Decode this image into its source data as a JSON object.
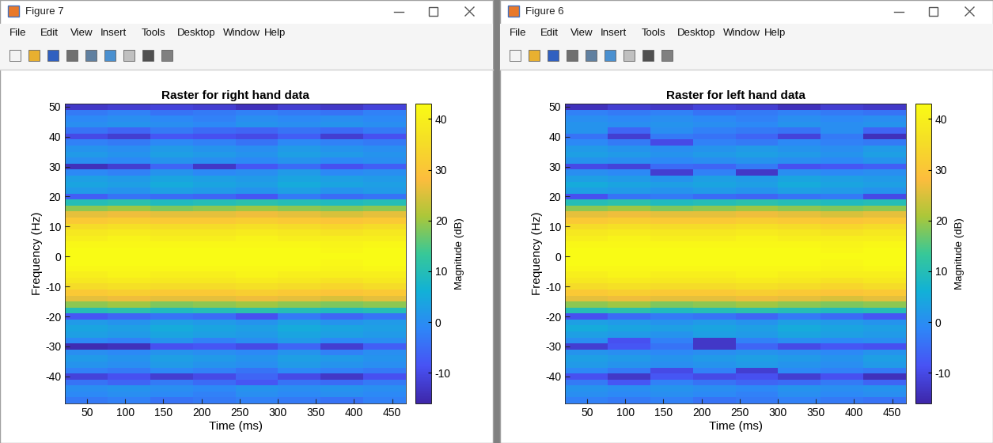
{
  "windows": [
    {
      "title": "Figure 7",
      "menu": [
        "File",
        "Edit",
        "View",
        "Insert",
        "Tools",
        "Desktop",
        "Window",
        "Help"
      ]
    },
    {
      "title": "Figure 6",
      "menu": [
        "File",
        "Edit",
        "View",
        "Insert",
        "Tools",
        "Desktop",
        "Window",
        "Help"
      ]
    }
  ],
  "chart_data": [
    {
      "type": "heatmap",
      "title": "Raster for right hand data",
      "x_label": "Time (ms)",
      "y_label": "Frequency (Hz)",
      "xlim": [
        21,
        468
      ],
      "ylim": [
        -49,
        51
      ],
      "xticks": [
        50,
        100,
        150,
        200,
        250,
        300,
        350,
        400,
        450
      ],
      "yticks": [
        -40,
        -30,
        -20,
        -10,
        0,
        10,
        20,
        30,
        40,
        50
      ],
      "x_edges": [
        21,
        77,
        133,
        189,
        245,
        300,
        356,
        412,
        468
      ],
      "y_edges": [
        -49,
        -47,
        -45,
        -43,
        -41,
        -39,
        -37,
        -35,
        -33,
        -31,
        -29,
        -27,
        -25,
        -23,
        -21,
        -19,
        -17,
        -15,
        -13,
        -11,
        -9,
        -7,
        -5,
        -3,
        -1,
        1,
        3,
        5,
        7,
        9,
        11,
        13,
        15,
        17,
        19,
        21,
        23,
        25,
        27,
        29,
        31,
        33,
        35,
        37,
        39,
        41,
        43,
        45,
        47,
        49,
        51
      ],
      "cells": [
        [
          -3,
          -2,
          -4,
          -3,
          -2,
          -3,
          -4,
          -2
        ],
        [
          -1,
          0,
          -1,
          -2,
          0,
          -1,
          0,
          -1
        ],
        [
          0,
          1,
          0,
          -1,
          1,
          0,
          1,
          0
        ],
        [
          -4,
          -6,
          -3,
          -5,
          -8,
          -4,
          -5,
          -3
        ],
        [
          -11,
          -9,
          -12,
          -10,
          -6,
          -10,
          -13,
          -9
        ],
        [
          -2,
          -3,
          -1,
          -2,
          -4,
          -1,
          -2,
          -3
        ],
        [
          1,
          0,
          2,
          1,
          0,
          2,
          1,
          0
        ],
        [
          2,
          1,
          3,
          2,
          1,
          3,
          2,
          1
        ],
        [
          0,
          -1,
          1,
          0,
          -1,
          1,
          -2,
          0
        ],
        [
          -15,
          -14,
          -9,
          -8,
          -10,
          -6,
          -12,
          -7
        ],
        [
          -1,
          -2,
          1,
          -2,
          0,
          2,
          -1,
          0
        ],
        [
          3,
          2,
          4,
          3,
          2,
          4,
          3,
          2
        ],
        [
          4,
          3,
          5,
          4,
          3,
          5,
          4,
          3
        ],
        [
          2,
          1,
          3,
          2,
          1,
          3,
          1,
          2
        ],
        [
          -8,
          -6,
          -4,
          -5,
          -9,
          -3,
          -6,
          -4
        ],
        [
          10,
          11,
          9,
          10,
          11,
          10,
          9,
          10
        ],
        [
          19,
          20,
          18,
          19,
          20,
          19,
          18,
          19
        ],
        [
          26,
          27,
          26,
          26,
          27,
          26,
          25,
          26
        ],
        [
          31,
          32,
          31,
          31,
          32,
          31,
          30,
          31
        ],
        [
          35,
          36,
          35,
          35,
          36,
          35,
          34,
          35
        ],
        [
          38,
          39,
          38,
          38,
          39,
          38,
          37,
          38
        ],
        [
          40,
          41,
          40,
          40,
          41,
          40,
          40,
          40
        ],
        [
          42,
          42,
          42,
          42,
          42,
          42,
          41,
          42
        ],
        [
          43,
          43,
          43,
          43,
          43,
          43,
          42,
          43
        ],
        [
          43,
          43,
          43,
          43,
          43,
          43,
          43,
          43
        ],
        [
          43,
          43,
          43,
          43,
          43,
          43,
          42,
          43
        ],
        [
          42,
          42,
          42,
          42,
          42,
          42,
          41,
          42
        ],
        [
          40,
          41,
          40,
          40,
          41,
          40,
          40,
          40
        ],
        [
          38,
          39,
          38,
          38,
          39,
          38,
          37,
          38
        ],
        [
          35,
          36,
          35,
          35,
          36,
          35,
          34,
          35
        ],
        [
          31,
          32,
          31,
          31,
          32,
          31,
          30,
          31
        ],
        [
          26,
          27,
          26,
          26,
          27,
          26,
          25,
          26
        ],
        [
          19,
          20,
          18,
          19,
          20,
          19,
          18,
          19
        ],
        [
          10,
          11,
          9,
          10,
          11,
          10,
          9,
          10
        ],
        [
          -7,
          -4,
          -5,
          -6,
          -8,
          -3,
          -5,
          -4
        ],
        [
          2,
          1,
          3,
          2,
          1,
          3,
          1,
          2
        ],
        [
          4,
          3,
          5,
          4,
          3,
          5,
          4,
          3
        ],
        [
          3,
          2,
          4,
          3,
          2,
          4,
          3,
          2
        ],
        [
          -1,
          -2,
          1,
          -1,
          0,
          2,
          -1,
          0
        ],
        [
          -14,
          -12,
          -6,
          -13,
          -8,
          -5,
          -9,
          -7
        ],
        [
          0,
          -1,
          1,
          0,
          -1,
          1,
          -1,
          0
        ],
        [
          2,
          1,
          3,
          2,
          1,
          3,
          2,
          1
        ],
        [
          1,
          0,
          2,
          1,
          0,
          2,
          1,
          0
        ],
        [
          -2,
          -3,
          -1,
          -2,
          -4,
          -1,
          -2,
          -3
        ],
        [
          -10,
          -12,
          -8,
          -9,
          -10,
          -7,
          -12,
          -9
        ],
        [
          -4,
          -6,
          -3,
          -5,
          -6,
          -4,
          -5,
          -3
        ],
        [
          0,
          1,
          0,
          -1,
          1,
          0,
          1,
          0
        ],
        [
          -1,
          0,
          -1,
          -2,
          0,
          -1,
          0,
          -1
        ],
        [
          -3,
          -2,
          -4,
          -3,
          -2,
          -3,
          -4,
          -2
        ],
        [
          -13,
          -12,
          -11,
          -12,
          -14,
          -12,
          -13,
          -11
        ]
      ],
      "colorbar": {
        "label": "Magnitude (dB)",
        "range": [
          -16,
          43
        ],
        "ticks": [
          -10,
          0,
          10,
          20,
          30,
          40
        ]
      }
    },
    {
      "type": "heatmap",
      "title": "Raster for left hand data",
      "x_label": "Time (ms)",
      "y_label": "Frequency (Hz)",
      "xlim": [
        21,
        468
      ],
      "ylim": [
        -49,
        51
      ],
      "xticks": [
        50,
        100,
        150,
        200,
        250,
        300,
        350,
        400,
        450
      ],
      "yticks": [
        -40,
        -30,
        -20,
        -10,
        0,
        10,
        20,
        30,
        40,
        50
      ],
      "x_edges": [
        21,
        77,
        133,
        189,
        245,
        300,
        356,
        412,
        468
      ],
      "y_edges": [
        -49,
        -47,
        -45,
        -43,
        -41,
        -39,
        -37,
        -35,
        -33,
        -31,
        -29,
        -27,
        -25,
        -23,
        -21,
        -19,
        -17,
        -15,
        -13,
        -11,
        -9,
        -7,
        -5,
        -3,
        -1,
        1,
        3,
        5,
        7,
        9,
        11,
        13,
        15,
        17,
        19,
        21,
        23,
        25,
        27,
        29,
        31,
        33,
        35,
        37,
        39,
        41,
        43,
        45,
        47,
        49,
        51
      ],
      "cells": [
        [
          -2,
          -3,
          -2,
          -4,
          -3,
          -2,
          -3,
          -4
        ],
        [
          0,
          -1,
          0,
          -1,
          -2,
          0,
          -1,
          0
        ],
        [
          1,
          0,
          1,
          0,
          -1,
          1,
          0,
          1
        ],
        [
          -3,
          -8,
          -2,
          -4,
          -6,
          -5,
          -3,
          -6
        ],
        [
          -9,
          -13,
          -8,
          -10,
          -9,
          -12,
          -9,
          -14
        ],
        [
          -1,
          -3,
          -10,
          -2,
          -12,
          -1,
          -2,
          -3
        ],
        [
          2,
          1,
          0,
          1,
          2,
          1,
          0,
          2
        ],
        [
          3,
          2,
          1,
          2,
          3,
          2,
          1,
          3
        ],
        [
          1,
          0,
          -1,
          0,
          1,
          0,
          -1,
          1
        ],
        [
          -12,
          -8,
          -4,
          -13,
          -6,
          -10,
          -8,
          -9
        ],
        [
          0,
          -9,
          -2,
          -13,
          -2,
          0,
          -1,
          0
        ],
        [
          3,
          2,
          1,
          3,
          2,
          4,
          3,
          2
        ],
        [
          5,
          4,
          3,
          4,
          3,
          5,
          4,
          3
        ],
        [
          3,
          2,
          1,
          2,
          1,
          3,
          2,
          1
        ],
        [
          -9,
          -5,
          -3,
          -4,
          -6,
          -3,
          -5,
          -8
        ],
        [
          10,
          11,
          9,
          10,
          11,
          10,
          9,
          10
        ],
        [
          19,
          20,
          18,
          19,
          20,
          19,
          18,
          19
        ],
        [
          26,
          27,
          26,
          26,
          27,
          26,
          25,
          26
        ],
        [
          31,
          32,
          31,
          31,
          32,
          31,
          30,
          31
        ],
        [
          35,
          36,
          35,
          35,
          36,
          35,
          34,
          35
        ],
        [
          38,
          39,
          38,
          38,
          39,
          38,
          37,
          38
        ],
        [
          40,
          41,
          40,
          40,
          41,
          40,
          40,
          40
        ],
        [
          42,
          42,
          42,
          42,
          42,
          42,
          41,
          42
        ],
        [
          43,
          43,
          43,
          43,
          43,
          43,
          42,
          43
        ],
        [
          43,
          43,
          43,
          43,
          43,
          43,
          43,
          43
        ],
        [
          43,
          43,
          43,
          43,
          43,
          43,
          42,
          43
        ],
        [
          42,
          42,
          42,
          42,
          42,
          42,
          41,
          42
        ],
        [
          40,
          41,
          40,
          40,
          41,
          40,
          40,
          40
        ],
        [
          38,
          39,
          38,
          38,
          39,
          38,
          37,
          38
        ],
        [
          35,
          36,
          35,
          35,
          36,
          35,
          34,
          35
        ],
        [
          31,
          32,
          31,
          31,
          32,
          31,
          30,
          31
        ],
        [
          26,
          27,
          26,
          26,
          27,
          26,
          25,
          26
        ],
        [
          19,
          20,
          18,
          19,
          20,
          19,
          18,
          19
        ],
        [
          10,
          11,
          9,
          10,
          11,
          10,
          9,
          10
        ],
        [
          -9,
          -4,
          -3,
          -5,
          -6,
          -4,
          -3,
          -10
        ],
        [
          3,
          2,
          1,
          2,
          1,
          3,
          2,
          1
        ],
        [
          5,
          4,
          3,
          4,
          3,
          5,
          4,
          3
        ],
        [
          3,
          2,
          1,
          3,
          2,
          4,
          3,
          2
        ],
        [
          0,
          -1,
          -12,
          -2,
          -13,
          0,
          -1,
          0
        ],
        [
          -10,
          -11,
          -5,
          -6,
          -3,
          -9,
          -8,
          -7
        ],
        [
          1,
          0,
          -1,
          0,
          1,
          0,
          -1,
          1
        ],
        [
          3,
          2,
          1,
          2,
          3,
          2,
          1,
          3
        ],
        [
          2,
          1,
          0,
          1,
          2,
          1,
          0,
          2
        ],
        [
          -1,
          -3,
          -10,
          -2,
          -3,
          -1,
          -2,
          -3
        ],
        [
          -4,
          -12,
          -3,
          -4,
          -6,
          -11,
          -3,
          -14
        ],
        [
          1,
          -6,
          0,
          -2,
          -3,
          -4,
          0,
          -6
        ],
        [
          1,
          0,
          1,
          0,
          -1,
          1,
          0,
          1
        ],
        [
          0,
          -1,
          0,
          -1,
          -2,
          0,
          -1,
          0
        ],
        [
          -2,
          -3,
          -2,
          -4,
          -3,
          -2,
          -3,
          -4
        ],
        [
          -14,
          -12,
          -13,
          -11,
          -12,
          -14,
          -12,
          -13
        ]
      ],
      "colorbar": {
        "label": "Magnitude (dB)",
        "range": [
          -16,
          43
        ],
        "ticks": [
          -10,
          0,
          10,
          20,
          30,
          40
        ]
      }
    }
  ]
}
